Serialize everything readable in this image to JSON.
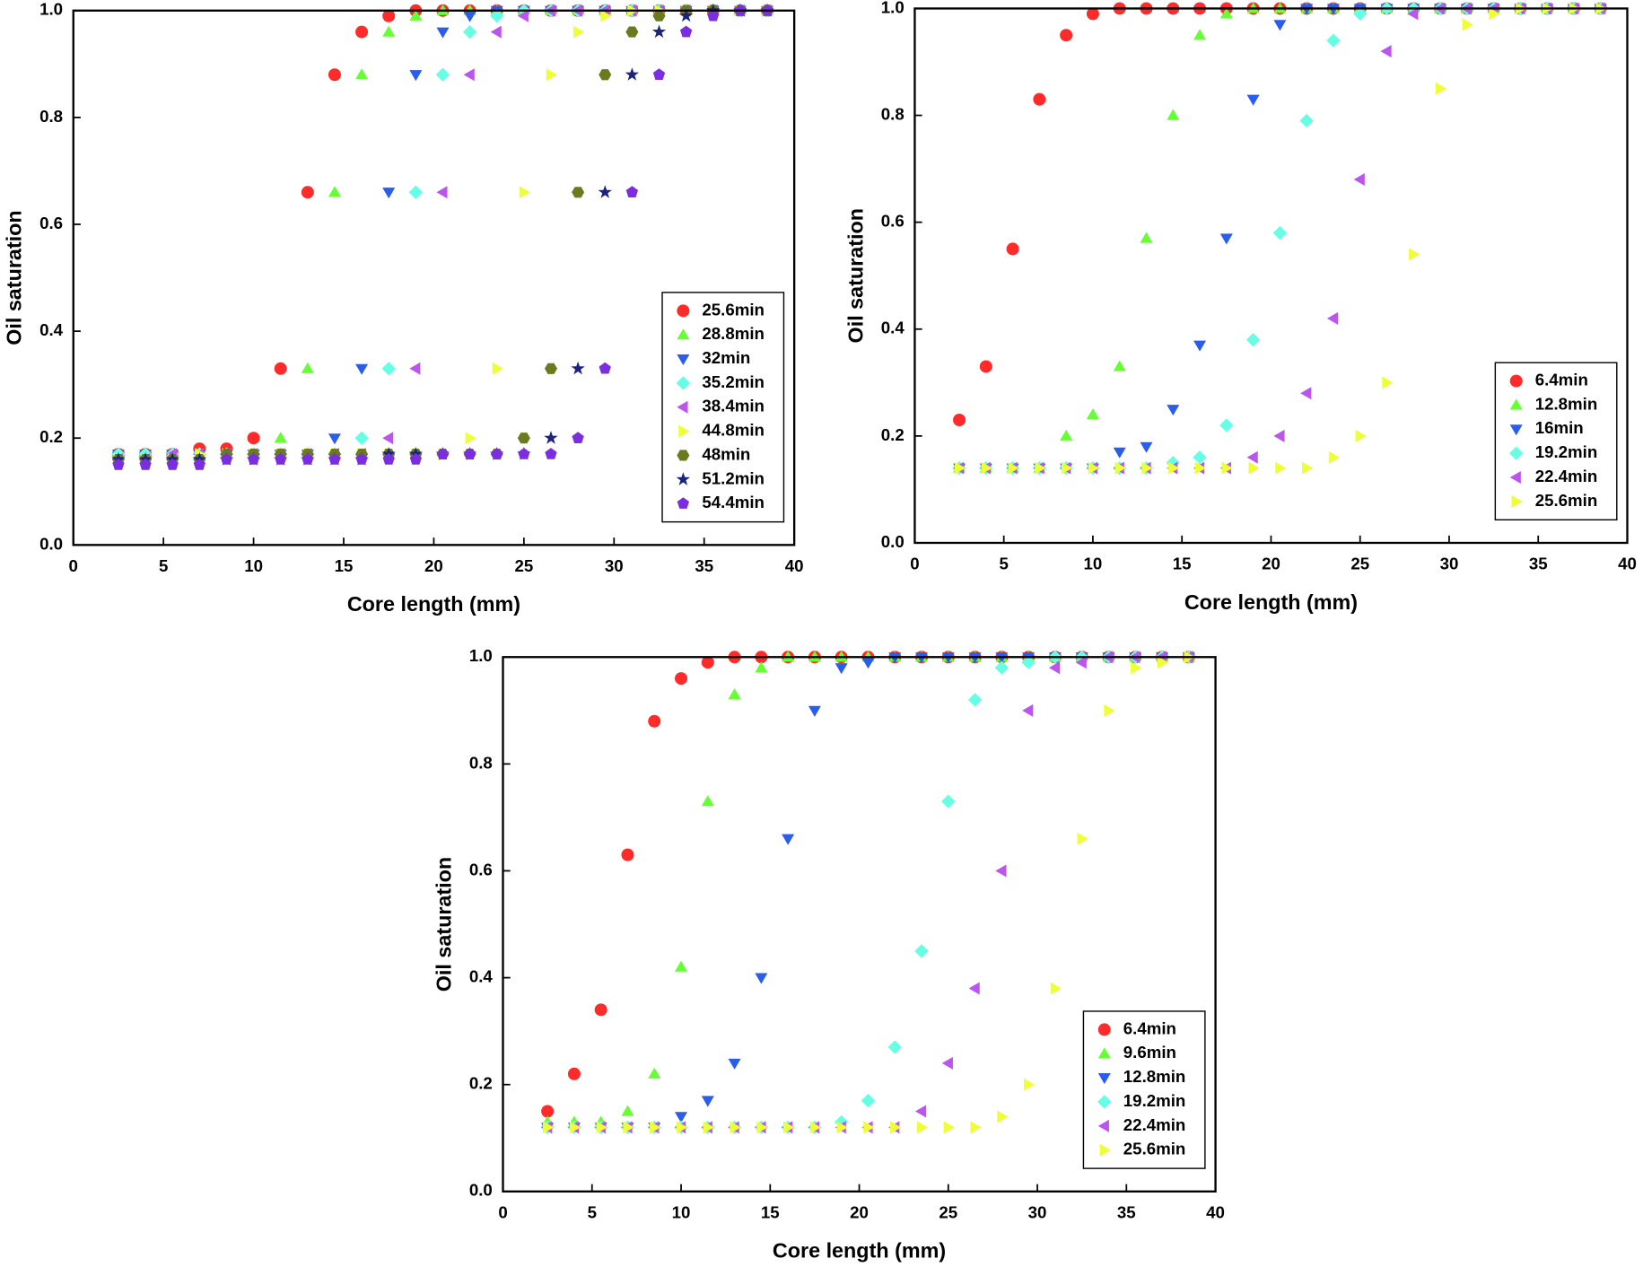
{
  "chart_data": [
    {
      "type": "scatter",
      "xlabel": "Core length (mm)",
      "ylabel": "Oil saturation",
      "xlim": [
        0,
        40
      ],
      "xticks": [
        0,
        5,
        10,
        15,
        20,
        25,
        30,
        35,
        40
      ],
      "ylim": [
        0,
        1
      ],
      "yticks": [
        {
          "value": 0,
          "label": "0.0"
        },
        0.2,
        0.4,
        0.6,
        0.8,
        {
          "value": 1,
          "label": "1.0"
        }
      ],
      "legend": "lower right",
      "x": [
        2.5,
        4,
        5.5,
        7,
        8.5,
        10,
        11.5,
        13,
        14.5,
        16,
        17.5,
        19,
        20.5,
        22,
        23.5,
        25,
        26.5,
        28,
        29.5,
        31,
        32.5,
        34,
        35.5,
        37,
        38.5
      ],
      "series": [
        {
          "name": "25.6min",
          "color": "#ff2a2a",
          "marker": "circle",
          "values": [
            0.17,
            0.17,
            0.17,
            0.18,
            0.18,
            0.2,
            0.33,
            0.66,
            0.88,
            0.96,
            0.99,
            1,
            1,
            1,
            1,
            1,
            1,
            1,
            1,
            1,
            1,
            1,
            1,
            1,
            1
          ]
        },
        {
          "name": "28.8min",
          "color": "#66ff33",
          "marker": "triangle-up",
          "values": [
            0.17,
            0.17,
            0.17,
            0.17,
            0.17,
            0.17,
            0.2,
            0.33,
            0.66,
            0.88,
            0.96,
            0.99,
            1,
            1,
            1,
            1,
            1,
            1,
            1,
            1,
            1,
            1,
            1,
            1,
            1
          ]
        },
        {
          "name": "32min",
          "color": "#2a5ced",
          "marker": "triangle-down",
          "values": [
            0.17,
            0.17,
            0.17,
            0.17,
            0.17,
            0.17,
            0.17,
            0.17,
            0.2,
            0.33,
            0.66,
            0.88,
            0.96,
            0.99,
            1,
            1,
            1,
            1,
            1,
            1,
            1,
            1,
            1,
            1,
            1
          ]
        },
        {
          "name": "35.2min",
          "color": "#66ffe6",
          "marker": "diamond",
          "values": [
            0.17,
            0.17,
            0.17,
            0.17,
            0.17,
            0.17,
            0.17,
            0.17,
            0.17,
            0.2,
            0.33,
            0.66,
            0.88,
            0.96,
            0.99,
            1,
            1,
            1,
            1,
            1,
            1,
            1,
            1,
            1,
            1
          ]
        },
        {
          "name": "38.4min",
          "color": "#bb55ee",
          "marker": "triangle-left",
          "values": [
            0.16,
            0.16,
            0.17,
            0.17,
            0.17,
            0.17,
            0.17,
            0.17,
            0.17,
            0.17,
            0.2,
            0.33,
            0.66,
            0.88,
            0.96,
            0.99,
            1,
            1,
            1,
            1,
            1,
            1,
            1,
            1,
            1
          ]
        },
        {
          "name": "44.8min",
          "color": "#eeff33",
          "marker": "triangle-right",
          "values": [
            0.16,
            0.16,
            0.16,
            0.17,
            0.17,
            0.17,
            0.17,
            0.17,
            0.17,
            0.17,
            0.17,
            0.17,
            0.17,
            0.2,
            0.33,
            0.66,
            0.88,
            0.96,
            0.99,
            1,
            1,
            1,
            1,
            1,
            1
          ]
        },
        {
          "name": "48min",
          "color": "#6b7a1f",
          "marker": "hexagon",
          "values": [
            0.16,
            0.16,
            0.16,
            0.16,
            0.17,
            0.17,
            0.17,
            0.17,
            0.17,
            0.17,
            0.17,
            0.17,
            0.17,
            0.17,
            0.17,
            0.2,
            0.33,
            0.66,
            0.88,
            0.96,
            0.99,
            1,
            1,
            1,
            1
          ]
        },
        {
          "name": "51.2min",
          "color": "#1a237e",
          "marker": "star",
          "values": [
            0.16,
            0.16,
            0.16,
            0.16,
            0.16,
            0.16,
            0.16,
            0.16,
            0.16,
            0.16,
            0.17,
            0.17,
            0.17,
            0.17,
            0.17,
            0.17,
            0.2,
            0.33,
            0.66,
            0.88,
            0.96,
            0.99,
            1,
            1,
            1
          ]
        },
        {
          "name": "54.4min",
          "color": "#7a2ee0",
          "marker": "pentagon",
          "values": [
            0.15,
            0.15,
            0.15,
            0.15,
            0.16,
            0.16,
            0.16,
            0.16,
            0.16,
            0.16,
            0.16,
            0.16,
            0.17,
            0.17,
            0.17,
            0.17,
            0.17,
            0.2,
            0.33,
            0.66,
            0.88,
            0.96,
            0.99,
            1,
            1
          ]
        }
      ]
    },
    {
      "type": "scatter",
      "xlabel": "Core length (mm)",
      "ylabel": "Oil saturation",
      "xlim": [
        0,
        40
      ],
      "xticks": [
        0,
        5,
        10,
        15,
        20,
        25,
        30,
        35,
        40
      ],
      "ylim": [
        0,
        1
      ],
      "yticks": [
        {
          "value": 0,
          "label": "0.0"
        },
        0.2,
        0.4,
        0.6,
        0.8,
        {
          "value": 1,
          "label": "1.0"
        }
      ],
      "legend": "lower right",
      "x": [
        2.5,
        4,
        5.5,
        7,
        8.5,
        10,
        11.5,
        13,
        14.5,
        16,
        17.5,
        19,
        20.5,
        22,
        23.5,
        25,
        26.5,
        28,
        29.5,
        31,
        32.5,
        34,
        35.5,
        37,
        38.5
      ],
      "series": [
        {
          "name": "6.4min",
          "color": "#ff2a2a",
          "marker": "circle",
          "values": [
            0.23,
            0.33,
            0.55,
            0.83,
            0.95,
            0.99,
            1,
            1,
            1,
            1,
            1,
            1,
            1,
            1,
            1,
            1,
            1,
            1,
            1,
            1,
            1,
            1,
            1,
            1,
            1
          ]
        },
        {
          "name": "12.8min",
          "color": "#66ff33",
          "marker": "triangle-up",
          "values": [
            0.14,
            0.14,
            0.14,
            0.14,
            0.2,
            0.24,
            0.33,
            0.57,
            0.8,
            0.95,
            0.99,
            1,
            1,
            1,
            1,
            1,
            1,
            1,
            1,
            1,
            1,
            1,
            1,
            1,
            1
          ]
        },
        {
          "name": "16min",
          "color": "#2a5ced",
          "marker": "triangle-down",
          "values": [
            0.14,
            0.14,
            0.14,
            0.14,
            0.14,
            0.14,
            0.17,
            0.18,
            0.25,
            0.37,
            0.57,
            0.83,
            0.97,
            1,
            1,
            1,
            1,
            1,
            1,
            1,
            1,
            1,
            1,
            1,
            1
          ]
        },
        {
          "name": "19.2min",
          "color": "#66ffe6",
          "marker": "diamond",
          "values": [
            0.14,
            0.14,
            0.14,
            0.14,
            0.14,
            0.14,
            0.14,
            0.14,
            0.15,
            0.16,
            0.22,
            0.38,
            0.58,
            0.79,
            0.94,
            0.99,
            1,
            1,
            1,
            1,
            1,
            1,
            1,
            1,
            1
          ]
        },
        {
          "name": "22.4min",
          "color": "#bb55ee",
          "marker": "triangle-left",
          "values": [
            0.14,
            0.14,
            0.14,
            0.14,
            0.14,
            0.14,
            0.14,
            0.14,
            0.14,
            0.14,
            0.14,
            0.16,
            0.2,
            0.28,
            0.42,
            0.68,
            0.92,
            0.99,
            1,
            1,
            1,
            1,
            1,
            1,
            1
          ]
        },
        {
          "name": "25.6min",
          "color": "#eeff33",
          "marker": "triangle-right",
          "values": [
            0.14,
            0.14,
            0.14,
            0.14,
            0.14,
            0.14,
            0.14,
            0.14,
            0.14,
            0.14,
            0.14,
            0.14,
            0.14,
            0.14,
            0.16,
            0.2,
            0.3,
            0.54,
            0.85,
            0.97,
            0.99,
            1,
            1,
            1,
            1
          ]
        }
      ]
    },
    {
      "type": "scatter",
      "xlabel": "Core length (mm)",
      "ylabel": "Oil saturation",
      "xlim": [
        0,
        40
      ],
      "xticks": [
        0,
        5,
        10,
        15,
        20,
        25,
        30,
        35,
        40
      ],
      "ylim": [
        0,
        1
      ],
      "yticks": [
        {
          "value": 0,
          "label": "0.0"
        },
        0.2,
        0.4,
        0.6,
        0.8,
        {
          "value": 1,
          "label": "1.0"
        }
      ],
      "legend": "lower right",
      "x": [
        2.5,
        4,
        5.5,
        7,
        8.5,
        10,
        11.5,
        13,
        14.5,
        16,
        17.5,
        19,
        20.5,
        22,
        23.5,
        25,
        26.5,
        28,
        29.5,
        31,
        32.5,
        34,
        35.5,
        37,
        38.5
      ],
      "series": [
        {
          "name": "6.4min",
          "color": "#ff2a2a",
          "marker": "circle",
          "values": [
            0.15,
            0.22,
            0.34,
            0.63,
            0.88,
            0.96,
            0.99,
            1,
            1,
            1,
            1,
            1,
            1,
            1,
            1,
            1,
            1,
            1,
            1,
            1,
            1,
            1,
            1,
            1,
            1
          ]
        },
        {
          "name": "9.6min",
          "color": "#66ff33",
          "marker": "triangle-up",
          "values": [
            0.13,
            0.13,
            0.13,
            0.15,
            0.22,
            0.42,
            0.73,
            0.93,
            0.98,
            1,
            1,
            1,
            1,
            1,
            1,
            1,
            1,
            1,
            1,
            1,
            1,
            1,
            1,
            1,
            1
          ]
        },
        {
          "name": "12.8min",
          "color": "#2a5ced",
          "marker": "triangle-down",
          "values": [
            0.12,
            0.12,
            0.12,
            0.12,
            0.12,
            0.14,
            0.17,
            0.24,
            0.4,
            0.66,
            0.9,
            0.98,
            0.99,
            1,
            1,
            1,
            1,
            1,
            1,
            1,
            1,
            1,
            1,
            1,
            1
          ]
        },
        {
          "name": "19.2min",
          "color": "#66ffe6",
          "marker": "diamond",
          "values": [
            0.12,
            0.12,
            0.12,
            0.12,
            0.12,
            0.12,
            0.12,
            0.12,
            0.12,
            0.12,
            0.12,
            0.13,
            0.17,
            0.27,
            0.45,
            0.73,
            0.92,
            0.98,
            0.99,
            1,
            1,
            1,
            1,
            1,
            1
          ]
        },
        {
          "name": "22.4min",
          "color": "#bb55ee",
          "marker": "triangle-left",
          "values": [
            0.12,
            0.12,
            0.12,
            0.12,
            0.12,
            0.12,
            0.12,
            0.12,
            0.12,
            0.12,
            0.12,
            0.12,
            0.12,
            0.12,
            0.15,
            0.24,
            0.38,
            0.6,
            0.9,
            0.98,
            0.99,
            1,
            1,
            1,
            1
          ]
        },
        {
          "name": "25.6min",
          "color": "#eeff33",
          "marker": "triangle-right",
          "values": [
            0.12,
            0.12,
            0.12,
            0.12,
            0.12,
            0.12,
            0.12,
            0.12,
            0.12,
            0.12,
            0.12,
            0.12,
            0.12,
            0.12,
            0.12,
            0.12,
            0.12,
            0.14,
            0.2,
            0.38,
            0.66,
            0.9,
            0.98,
            0.99,
            1
          ]
        }
      ]
    }
  ]
}
